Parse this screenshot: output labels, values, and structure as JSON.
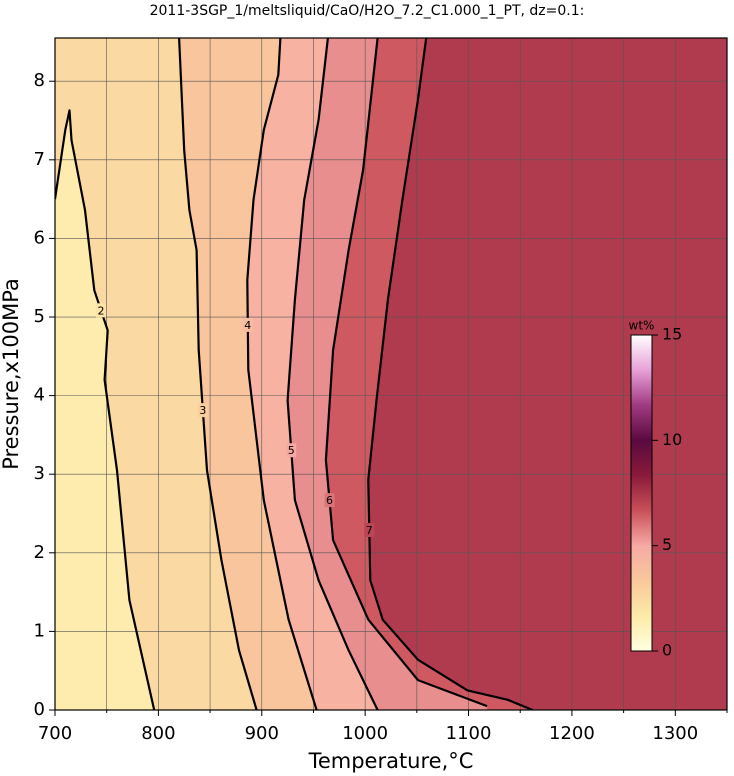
{
  "chart_data": {
    "type": "contour",
    "title": "2011-3SGP_1/meltsliquid/CaO/H2O_7.2_C1.000_1_PT, dz=0.1:",
    "xlabel": "Temperature,°C",
    "ylabel": "Pressure,x100MPa",
    "xlim": [
      700,
      1350
    ],
    "ylim": [
      0,
      8.55
    ],
    "xticks": [
      700,
      800,
      900,
      1000,
      1100,
      1200,
      1300
    ],
    "xminorticks": [
      750,
      850,
      950,
      1050,
      1150,
      1250,
      1350
    ],
    "yticks": [
      0,
      1,
      2,
      3,
      4,
      5,
      6,
      7,
      8
    ],
    "grid": true,
    "line_color": "#000000",
    "colormap": [
      "#ffffe0",
      "#fdeaa8",
      "#f9c89c",
      "#f6a9a4",
      "#c9505a",
      "#8a1a3a",
      "#5a0a40",
      "#a03a80",
      "#e8a0d8",
      "#ffffff"
    ],
    "colorbar": {
      "label": "wt%",
      "lim": [
        0,
        15
      ],
      "ticks": [
        0,
        5,
        10,
        15
      ]
    },
    "contours": [
      {
        "level": 2,
        "x": [
          796,
          772,
          760,
          748,
          751,
          738,
          729,
          716,
          714,
          710,
          700
        ],
        "y": [
          0,
          1.4,
          3.05,
          4.2,
          4.83,
          5.34,
          6.36,
          7.25,
          7.63,
          7.38,
          6.5
        ]
      },
      {
        "level": 3,
        "x": [
          895,
          878,
          861,
          847,
          839,
          837,
          830,
          825,
          820
        ],
        "y": [
          0,
          0.76,
          1.91,
          3.05,
          4.58,
          5.85,
          6.36,
          7.12,
          8.55
        ]
      },
      {
        "level": 4,
        "x": [
          953,
          926,
          902,
          887,
          886,
          892,
          902,
          916,
          918
        ],
        "y": [
          0,
          1.15,
          2.67,
          4.33,
          5.47,
          6.49,
          7.38,
          8.08,
          8.55
        ]
      },
      {
        "level": 5,
        "x": [
          1012,
          984,
          955,
          932,
          925,
          932,
          941,
          955,
          964
        ],
        "y": [
          0,
          0.76,
          1.65,
          2.67,
          3.94,
          5.22,
          6.49,
          7.51,
          8.55
        ]
      },
      {
        "level": 6,
        "x": [
          1118,
          1051,
          1003,
          969,
          962,
          969,
          984,
          998,
          1012
        ],
        "y": [
          0.05,
          0.38,
          1.15,
          2.16,
          3.18,
          4.58,
          5.85,
          6.87,
          8.55
        ]
      },
      {
        "level": 7,
        "x": [
          1162,
          1138,
          1099,
          1051,
          1017,
          1005,
          1003,
          1011,
          1022,
          1036,
          1051,
          1059
        ],
        "y": [
          0,
          0.13,
          0.25,
          0.64,
          1.15,
          1.65,
          2.93,
          3.94,
          5.22,
          6.49,
          7.76,
          8.55
        ]
      }
    ]
  }
}
